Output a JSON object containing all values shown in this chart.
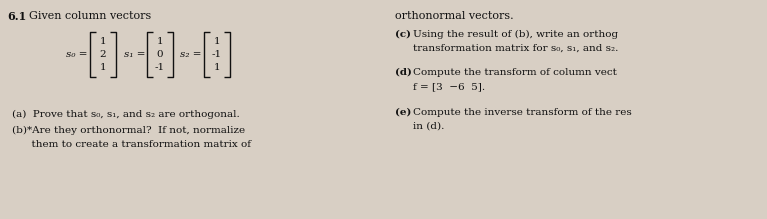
{
  "bg_color": "#d8cfc4",
  "title_number": "6.1",
  "title_text": "  Given column vectors",
  "right_top_text": "orthonormal vectors.",
  "s0_vals": [
    "1",
    "2",
    "1"
  ],
  "s1_vals": [
    "1",
    "0",
    "-1"
  ],
  "s2_vals": [
    "1",
    "-1",
    "1"
  ],
  "part_a": "(a)  Prove that s₀, s₁, and s₂ are orthogonal.",
  "part_b_line1": "(b)*Are they orthonormal?  If not, normalize",
  "part_b_line2": "      them to create a transformation matrix of",
  "right_header": "orthonormal vectors.",
  "part_c_line1": "(c)  Using the result of (b), write an orthog",
  "part_c_line2": "      transformation matrix for s₀, s₁, and s₂.",
  "part_d_line1": "(d)  Compute the transform of column vect",
  "part_d_line2": "      f = [3  −6  5].",
  "part_e_line1": "(e)  Compute the inverse transform of the res",
  "part_e_line2": "      in (d).",
  "text_color": "#111111",
  "font_size_body": 7.5,
  "font_size_title": 8.0,
  "fig_width": 7.67,
  "fig_height": 2.19,
  "dpi": 100
}
